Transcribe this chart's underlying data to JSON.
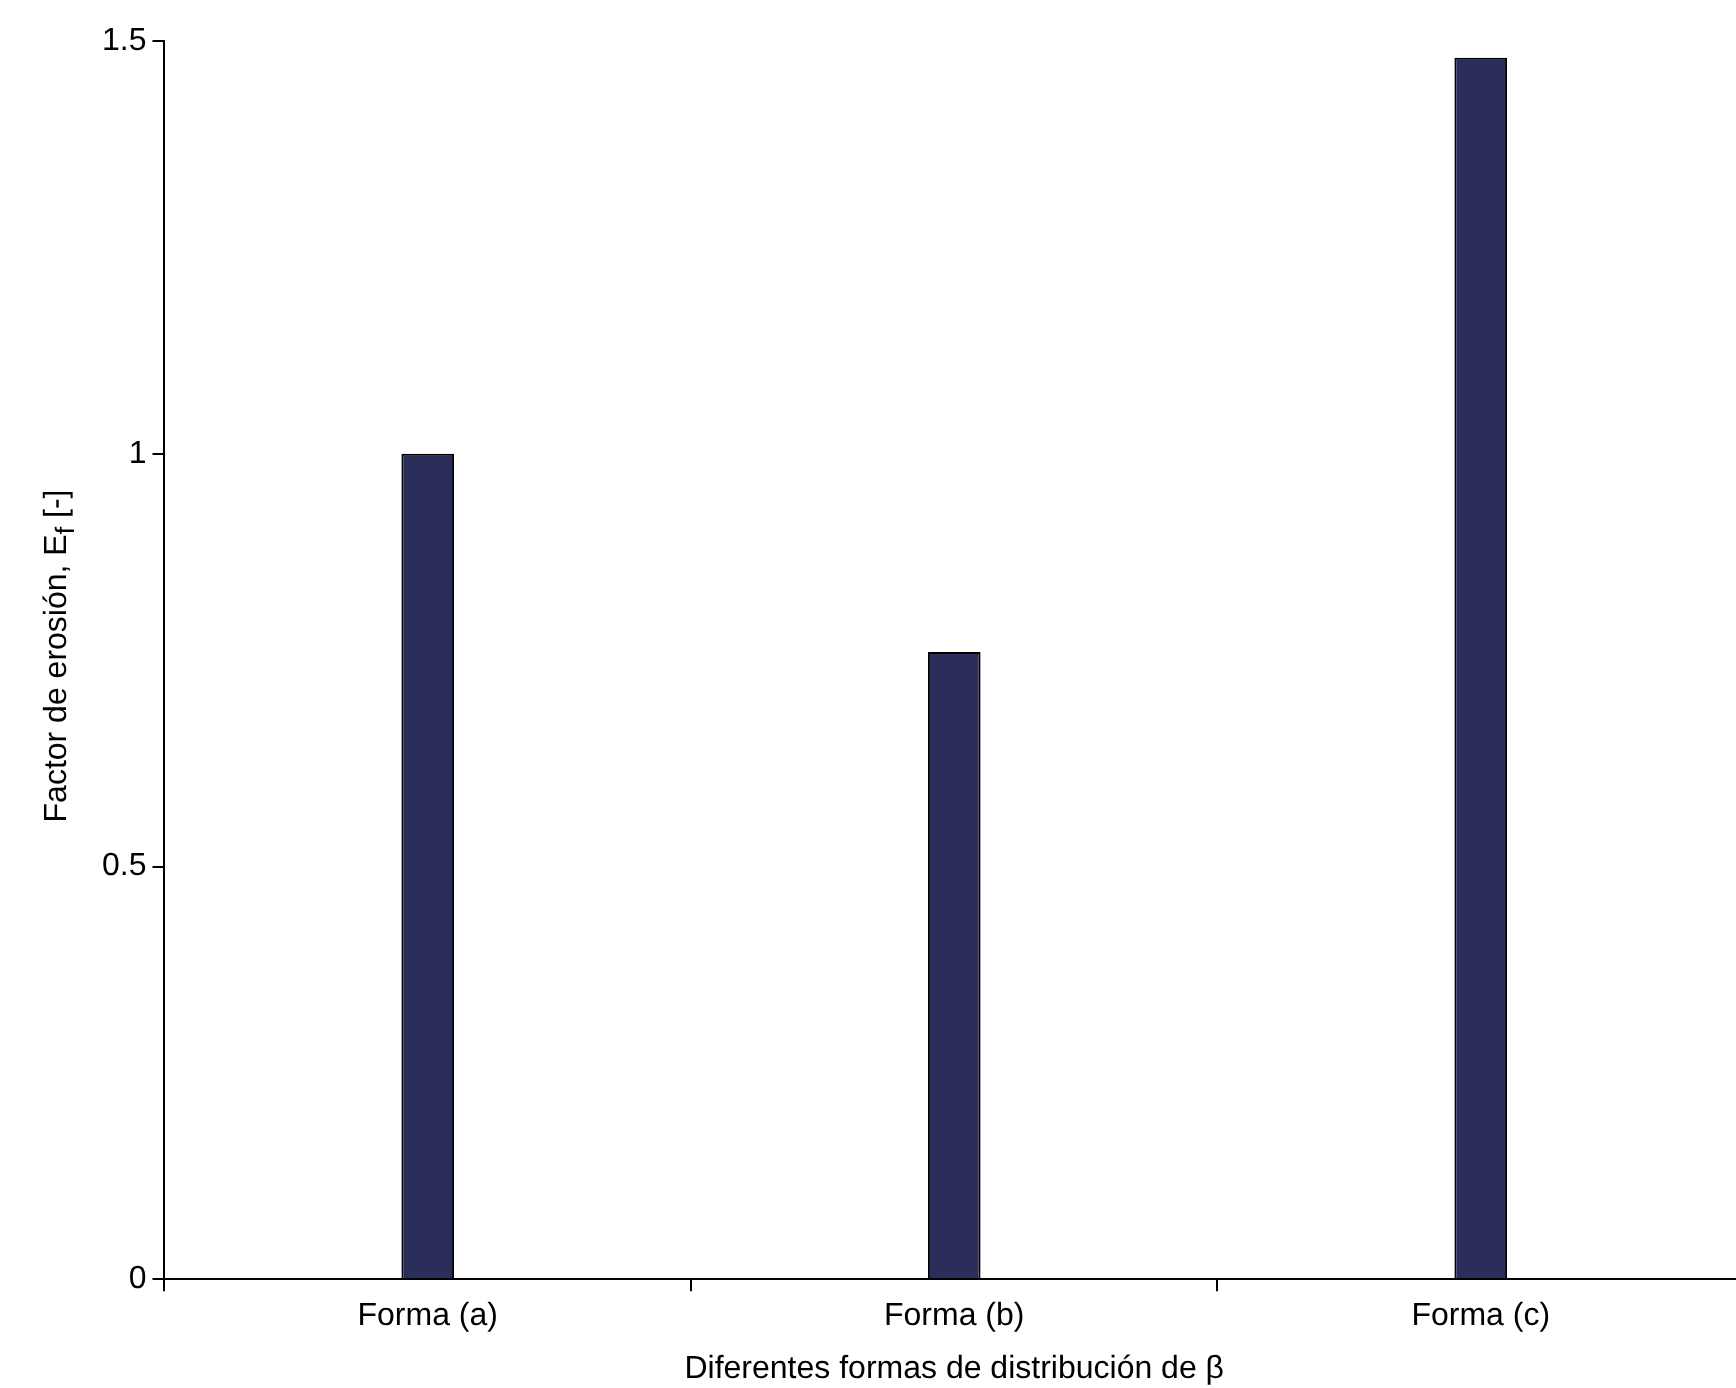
{
  "chart_data": {
    "type": "bar",
    "xlabel": "Diferentes formas de distribución de β",
    "ylabel": "Factor de erosión, E$_{f}$ [-]",
    "categories": [
      "Forma (a)",
      "Forma (b)",
      "Forma (c)"
    ],
    "values": [
      1.0,
      0.76,
      1.48
    ],
    "color": "#2b2d5a",
    "ylim": [
      0,
      1.5
    ],
    "yticks": [
      0,
      0.5,
      1,
      1.5
    ],
    "grid": false,
    "legend": false
  }
}
